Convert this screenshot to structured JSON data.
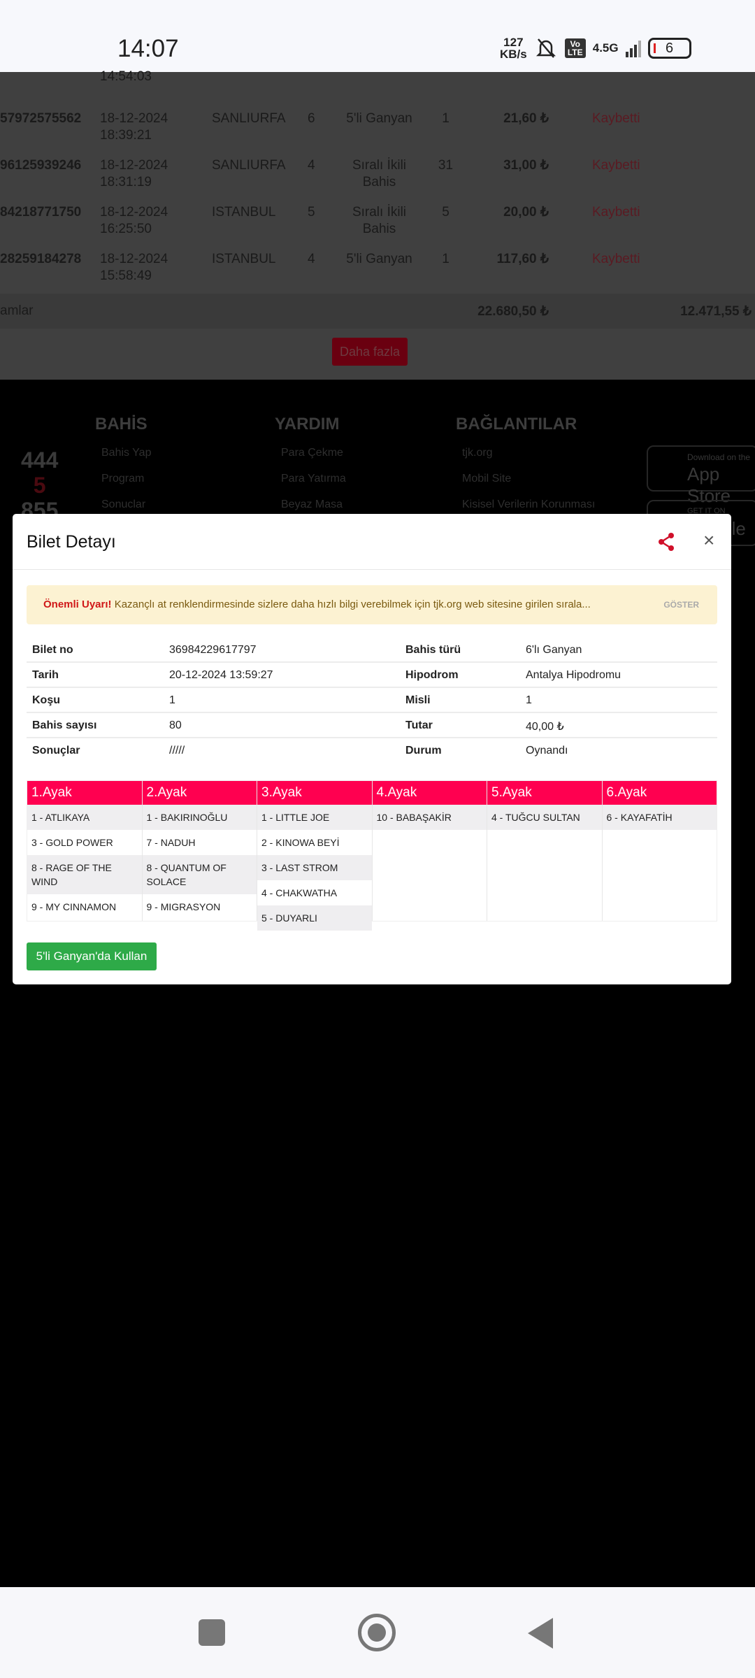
{
  "status_bar": {
    "time": "14:07",
    "speed": "127",
    "speed_unit": "KB/s",
    "volte": "Vo LTE",
    "network": "4.5G",
    "battery": "6"
  },
  "background_table": {
    "partial_row": {
      "date": "14:54:03"
    },
    "rows": [
      {
        "no": "57972575562",
        "date": "18-12-2024",
        "time": "18:39:21",
        "city": "SANLIURFA",
        "kosu": "6",
        "type": "5'li Ganyan",
        "count": "1",
        "amount": "21,60 ₺",
        "status": "Kaybetti"
      },
      {
        "no": "96125939246",
        "date": "18-12-2024",
        "time": "18:31:19",
        "city": "SANLIURFA",
        "kosu": "4",
        "type": "Sıralı İkili Bahis",
        "count": "31",
        "amount": "31,00 ₺",
        "status": "Kaybetti"
      },
      {
        "no": "84218771750",
        "date": "18-12-2024",
        "time": "16:25:50",
        "city": "ISTANBUL",
        "kosu": "5",
        "type": "Sıralı İkili Bahis",
        "count": "5",
        "amount": "20,00 ₺",
        "status": "Kaybetti"
      },
      {
        "no": "28259184278",
        "date": "18-12-2024",
        "time": "15:58:49",
        "city": "ISTANBUL",
        "kosu": "4",
        "type": "5'li Ganyan",
        "count": "1",
        "amount": "117,60 ₺",
        "status": "Kaybetti"
      }
    ],
    "totals": {
      "label": "amlar",
      "amount": "22.680,50 ₺",
      "won": "12.471,55 ₺"
    },
    "more_button": "Daha fazla"
  },
  "footer": {
    "phone": [
      "444",
      "5",
      "855"
    ],
    "columns": [
      {
        "title": "BAHİS",
        "links": [
          "Bahis Yap",
          "Program",
          "Sonuclar"
        ]
      },
      {
        "title": "YARDIM",
        "links": [
          "Para Çekme",
          "Para Yatırma",
          "Beyaz Masa"
        ]
      },
      {
        "title": "BAĞLANTILAR",
        "links": [
          "tjk.org",
          "Mobil Site",
          "Kisisel Verilerin Korunması"
        ]
      }
    ],
    "app_store": {
      "small": "Download on the",
      "big": "App Store"
    },
    "play_store": {
      "small": "GET IT ON",
      "big": "Google Play"
    }
  },
  "modal": {
    "title": "Bilet Detayı",
    "alert": {
      "strong": "Önemli Uyarı!",
      "text": "Kazançlı at renklendirmesinde sizlere daha hızlı bilgi verebilmek için tjk.org web sitesine girilen sırala...",
      "action": "GÖSTER"
    },
    "details": [
      {
        "l1": "Bilet no",
        "v1": "36984229617797",
        "l2": "Bahis türü",
        "v2": "6'lı Ganyan"
      },
      {
        "l1": "Tarih",
        "v1": "20-12-2024 13:59:27",
        "l2": "Hipodrom",
        "v2": "Antalya Hipodromu"
      },
      {
        "l1": "Koşu",
        "v1": "1",
        "l2": "Misli",
        "v2": "1"
      },
      {
        "l1": "Bahis sayısı",
        "v1": "80",
        "l2": "Tutar",
        "v2": "40,00 ₺"
      },
      {
        "l1": "Sonuçlar",
        "v1": "/////",
        "l2": "Durum",
        "v2": "Oynandı"
      }
    ],
    "legs": [
      {
        "title": "1.Ayak",
        "horses": [
          "1 - ATLIKAYA",
          "3 - GOLD POWER",
          "8 - RAGE OF THE WIND",
          "9 - MY CINNAMON"
        ]
      },
      {
        "title": "2.Ayak",
        "horses": [
          "1 - BAKIRINOĞLU",
          "7 - NADUH",
          "8 - QUANTUM OF SOLACE",
          "9 - MIGRASYON"
        ]
      },
      {
        "title": "3.Ayak",
        "horses": [
          "1 - LITTLE JOE",
          "2 - KINOWA BEYİ",
          "3 - LAST STROM",
          "4 - CHAKWATHA",
          "5 - DUYARLI"
        ]
      },
      {
        "title": "4.Ayak",
        "horses": [
          "10 - BABAŞAKİR"
        ]
      },
      {
        "title": "5.Ayak",
        "horses": [
          "4 - TUĞCU SULTAN"
        ]
      },
      {
        "title": "6.Ayak",
        "horses": [
          "6 - KAYAFATİH"
        ]
      }
    ],
    "use_button": "5'li Ganyan'da Kullan",
    "colors": {
      "leg_header": "#ff0050",
      "use_button": "#2eaa48",
      "share_icon": "#d0102a"
    }
  }
}
